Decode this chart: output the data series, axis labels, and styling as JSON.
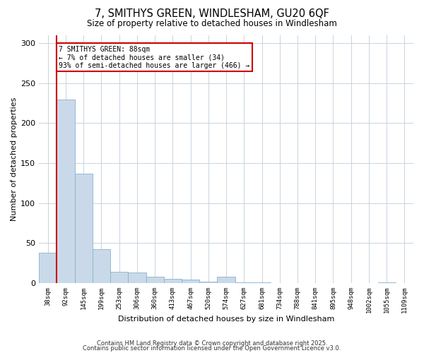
{
  "title": "7, SMITHYS GREEN, WINDLESHAM, GU20 6QF",
  "subtitle": "Size of property relative to detached houses in Windlesham",
  "xlabel": "Distribution of detached houses by size in Windlesham",
  "ylabel": "Number of detached properties",
  "bar_color": "#c9d9ea",
  "bar_edge_color": "#8ab0cc",
  "bin_labels": [
    "38sqm",
    "92sqm",
    "145sqm",
    "199sqm",
    "253sqm",
    "306sqm",
    "360sqm",
    "413sqm",
    "467sqm",
    "520sqm",
    "574sqm",
    "627sqm",
    "681sqm",
    "734sqm",
    "788sqm",
    "841sqm",
    "895sqm",
    "948sqm",
    "1002sqm",
    "1055sqm",
    "1109sqm"
  ],
  "bar_values": [
    38,
    230,
    137,
    42,
    14,
    13,
    8,
    5,
    4,
    2,
    8,
    1,
    1,
    0,
    0,
    0,
    0,
    0,
    0,
    1,
    0
  ],
  "ylim": [
    0,
    310
  ],
  "yticks": [
    0,
    50,
    100,
    150,
    200,
    250,
    300
  ],
  "marker_color": "#cc0000",
  "annotation_title": "7 SMITHYS GREEN: 88sqm",
  "annotation_line1": "← 7% of detached houses are smaller (34)",
  "annotation_line2": "93% of semi-detached houses are larger (466) →",
  "footer1": "Contains HM Land Registry data © Crown copyright and database right 2025.",
  "footer2": "Contains public sector information licensed under the Open Government Licence v3.0.",
  "bg_color": "#ffffff",
  "grid_color": "#c8d4e0"
}
